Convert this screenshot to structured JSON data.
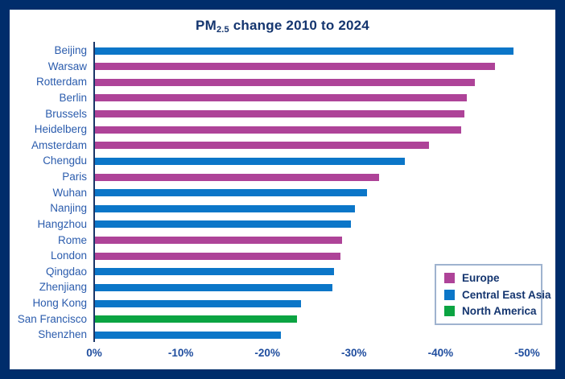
{
  "frame": {
    "border_color": "#002d6b",
    "background_color": "#ffffff"
  },
  "colors": {
    "title_text": "#14356f",
    "city_label_text": "#2b5cad",
    "tick_label_text": "#1f4d9e",
    "axis_line": "#1a3668",
    "legend_border": "#9fb3cf",
    "europe_bar": "#ae4398",
    "central_east_asia_bar": "#0b76c8",
    "north_america_bar": "#0ba442"
  },
  "chart_data": {
    "type": "bar",
    "orientation": "horizontal",
    "title": "PM2.5 change 2010 to 2024",
    "title_parts": {
      "prefix": "PM",
      "subscript": "2.5",
      "suffix": " change 2010 to 2024"
    },
    "xlabel": "",
    "ylabel": "",
    "grid": false,
    "x_axis_unit": "percent",
    "x_range_percent": [
      0,
      -50
    ],
    "x_ticks": [
      "0%",
      "-10%",
      "-20%",
      "-30%",
      "-40%",
      "-50%"
    ],
    "legend_position": "lower right",
    "legend": [
      {
        "label": "Europe",
        "color": "#ae4398"
      },
      {
        "label": "Central East Asia",
        "color": "#0b76c8"
      },
      {
        "label": "North America",
        "color": "#0ba442"
      }
    ],
    "series": [
      {
        "city": "Beijing",
        "region": "Central East Asia",
        "value_percent": -48.3
      },
      {
        "city": "Warsaw",
        "region": "Europe",
        "value_percent": -46.2
      },
      {
        "city": "Rotterdam",
        "region": "Europe",
        "value_percent": -43.9
      },
      {
        "city": "Berlin",
        "region": "Europe",
        "value_percent": -42.9
      },
      {
        "city": "Brussels",
        "region": "Europe",
        "value_percent": -42.7
      },
      {
        "city": "Heidelberg",
        "region": "Europe",
        "value_percent": -42.3
      },
      {
        "city": "Amsterdam",
        "region": "Europe",
        "value_percent": -38.6
      },
      {
        "city": "Chengdu",
        "region": "Central East Asia",
        "value_percent": -35.8
      },
      {
        "city": "Paris",
        "region": "Europe",
        "value_percent": -32.8
      },
      {
        "city": "Wuhan",
        "region": "Central East Asia",
        "value_percent": -31.4
      },
      {
        "city": "Nanjing",
        "region": "Central East Asia",
        "value_percent": -30.0
      },
      {
        "city": "Hangzhou",
        "region": "Central East Asia",
        "value_percent": -29.6
      },
      {
        "city": "Rome",
        "region": "Europe",
        "value_percent": -28.5
      },
      {
        "city": "London",
        "region": "Europe",
        "value_percent": -28.3
      },
      {
        "city": "Qingdao",
        "region": "Central East Asia",
        "value_percent": -27.6
      },
      {
        "city": "Zhenjiang",
        "region": "Central East Asia",
        "value_percent": -27.4
      },
      {
        "city": "Hong Kong",
        "region": "Central East Asia",
        "value_percent": -23.8
      },
      {
        "city": "San Francisco",
        "region": "North America",
        "value_percent": -23.3
      },
      {
        "city": "Shenzhen",
        "region": "Central East Asia",
        "value_percent": -21.5
      }
    ]
  }
}
